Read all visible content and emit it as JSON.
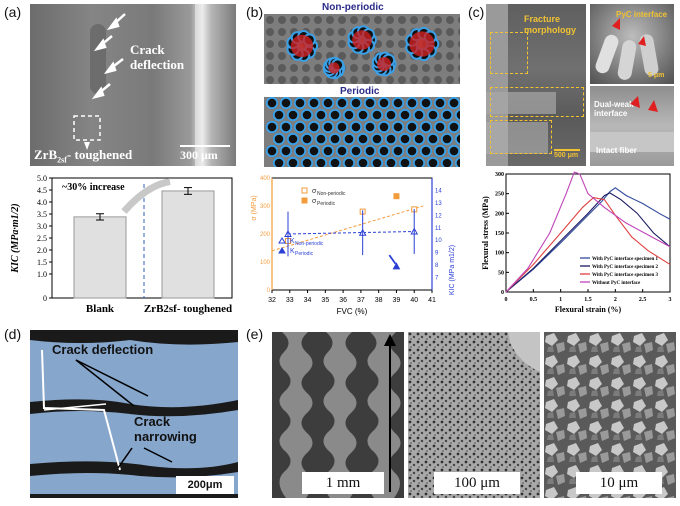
{
  "panels": {
    "a": "(a)",
    "b": "(b)",
    "c": "(c)",
    "d": "(d)",
    "e": "(e)"
  },
  "a": {
    "crack_label": "Crack\ndeflection",
    "material_label": "ZrB",
    "material_sub": "2sf",
    "material_suffix": "- toughened",
    "scale": "300 μm",
    "chart_annotation": "~30% increase"
  },
  "b": {
    "top_label": "Non-periodic",
    "mid_label": "Periodic",
    "legend_sigma_np": "σ",
    "legend_sigma_np_sub": "Non-periodic",
    "legend_sigma_p": "σ",
    "legend_sigma_p_sub": "Periodic",
    "legend_k_np": "K",
    "legend_k_np_sub": "Non-periodic",
    "legend_k_p": "K",
    "legend_k_p_sub": "Periodic"
  },
  "c": {
    "fracture_label": "Fracture\nmorphology",
    "scale_main": "500 μm",
    "pyc_label": "PyC interface",
    "scale_small1": "5 μm",
    "weak_label": "Dual-weak\ninterface",
    "intact_label": "Intact fiber"
  },
  "d": {
    "crack_deflection": "Crack deflection",
    "crack_narrowing": "Crack\nnarrowing",
    "scale": "200μm"
  },
  "e": {
    "scale1": "1 mm",
    "scale2": "100 μm",
    "scale3": "10 μm"
  },
  "chart_data": [
    {
      "type": "bar",
      "categories": [
        "Blank",
        "ZrB2sf- toughened"
      ],
      "values": [
        3.38,
        4.46
      ],
      "errors": [
        0.13,
        0.14
      ],
      "ylabel": "KIC (MPa·m1/2)",
      "ylim": [
        0,
        5
      ],
      "yticks": [
        "0",
        "1.0",
        "1.5",
        "2.0",
        "2.5",
        "3.0",
        "3.5",
        "4.0",
        "4.5",
        "5.0"
      ],
      "colors": {
        "bar": "#e0e0e0",
        "annotation_arrow": "#c8c8c8"
      }
    },
    {
      "type": "scatter",
      "x_ticks": [
        "32",
        "33",
        "34",
        "35",
        "36",
        "37",
        "38",
        "39",
        "40",
        "41"
      ],
      "xlabel": "FVC (%)",
      "xlim": [
        32,
        41
      ],
      "left_axis": {
        "label": "σ (MPa)",
        "ylim": [
          0,
          400
        ],
        "ticks": [
          "0",
          "100",
          "200",
          "300",
          "400"
        ]
      },
      "right_axis": {
        "label": "KIC (MPa m1/2)",
        "ylim": [
          6,
          15
        ],
        "ticks": [
          "7",
          "8",
          "9",
          "10",
          "11",
          "12",
          "13",
          "14"
        ]
      },
      "series": [
        {
          "name": "σ Non-periodic",
          "axis": "left",
          "marker": "open-square",
          "color": "#f39c3c",
          "x": [
            32.9,
            37.1,
            40.0
          ],
          "y": [
            175,
            280,
            288
          ]
        },
        {
          "name": "σ Periodic",
          "axis": "left",
          "marker": "filled-square",
          "color": "#f39c3c",
          "x": [
            39.0
          ],
          "y": [
            335
          ]
        },
        {
          "name": "KIC Non-periodic",
          "axis": "right",
          "marker": "open-triangle",
          "color": "#2b3fd6",
          "x": [
            32.9,
            37.1,
            40.0
          ],
          "y": [
            10.5,
            10.6,
            10.7
          ]
        },
        {
          "name": "KIC Periodic",
          "axis": "right",
          "marker": "filled-triangle",
          "color": "#2b3fd6",
          "x": [
            39.0
          ],
          "y": [
            7.9
          ]
        }
      ]
    },
    {
      "type": "line",
      "xlabel": "Flexural strain (%)",
      "ylabel": "Flexural stress (MPa)",
      "xlim": [
        0,
        3
      ],
      "ylim": [
        0,
        300
      ],
      "x_ticks": [
        "0",
        "0.5",
        "1",
        "1.5",
        "2",
        "2.5",
        "3"
      ],
      "y_ticks": [
        "0",
        "50",
        "100",
        "150",
        "200",
        "250",
        "300"
      ],
      "series": [
        {
          "name": "With PyC interface specimen 1",
          "color": "#2f4a9e",
          "x": [
            0,
            0.5,
            1.0,
            1.5,
            1.75,
            1.9,
            2.0,
            2.2,
            2.5,
            2.8,
            3.0
          ],
          "y": [
            0,
            58,
            125,
            195,
            230,
            255,
            265,
            245,
            225,
            200,
            185
          ]
        },
        {
          "name": "With PyC interface specimen 2",
          "color": "#1a1a60",
          "x": [
            0,
            0.5,
            1.0,
            1.5,
            1.8,
            1.9,
            2.1,
            2.4,
            2.7,
            3.0
          ],
          "y": [
            0,
            60,
            130,
            200,
            245,
            252,
            235,
            200,
            150,
            115
          ]
        },
        {
          "name": "With PyC interface specimen 3",
          "color": "#e04040",
          "x": [
            0,
            0.5,
            1.0,
            1.4,
            1.6,
            1.8,
            2.0,
            2.3,
            2.6,
            3.0
          ],
          "y": [
            0,
            70,
            150,
            215,
            240,
            235,
            195,
            140,
            105,
            70
          ]
        },
        {
          "name": "Without PyC interface",
          "color": "#c043b8",
          "x": [
            0,
            0.4,
            0.8,
            1.1,
            1.25,
            1.35,
            1.5,
            1.8,
            2.2,
            2.8,
            3.0
          ],
          "y": [
            0,
            60,
            150,
            250,
            305,
            300,
            250,
            215,
            175,
            130,
            115
          ]
        }
      ]
    }
  ]
}
